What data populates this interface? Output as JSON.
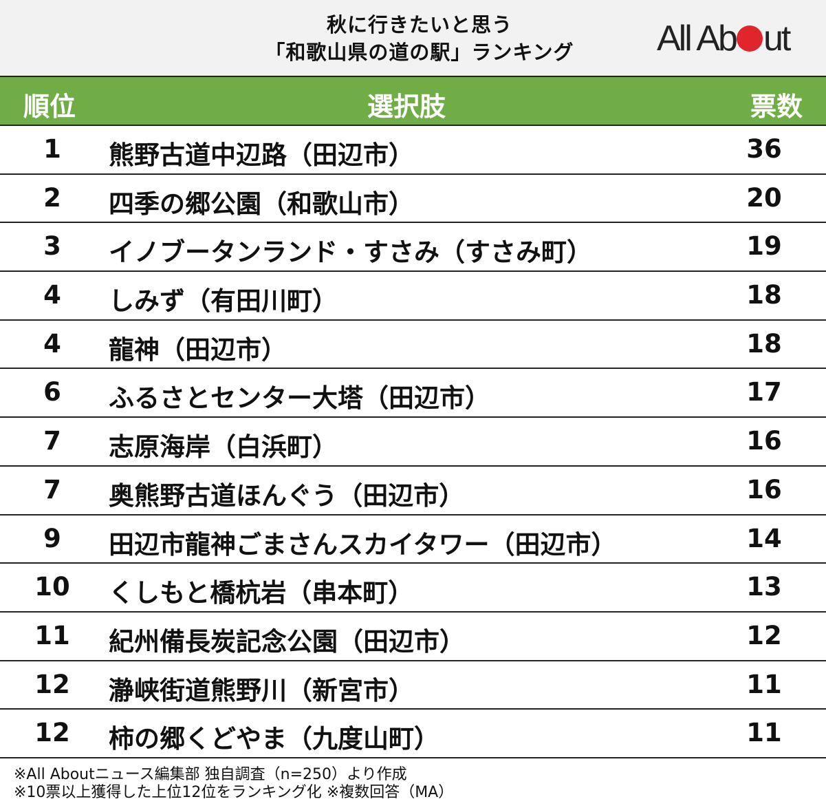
{
  "header": {
    "title_line1": "秋に行きたいと思う",
    "title_line2": "「和歌山県の道の駅」ランキング",
    "logo_text": "All About",
    "logo_accent_color": "#e0262c"
  },
  "table": {
    "columns": {
      "rank": "順位",
      "option": "選択肢",
      "votes": "票数"
    },
    "header_color": "#70ad47",
    "rows": [
      {
        "rank": "1",
        "name": "熊野古道中辺路（田辺市）",
        "votes": "36"
      },
      {
        "rank": "2",
        "name": "四季の郷公園（和歌山市）",
        "votes": "20"
      },
      {
        "rank": "3",
        "name": "イノブータンランド・すさみ（すさみ町）",
        "votes": "19"
      },
      {
        "rank": "4",
        "name": "しみず（有田川町）",
        "votes": "18"
      },
      {
        "rank": "4",
        "name": "龍神（田辺市）",
        "votes": "18"
      },
      {
        "rank": "6",
        "name": "ふるさとセンター大塔（田辺市）",
        "votes": "17"
      },
      {
        "rank": "7",
        "name": "志原海岸（白浜町）",
        "votes": "16"
      },
      {
        "rank": "7",
        "name": "奥熊野古道ほんぐう（田辺市）",
        "votes": "16"
      },
      {
        "rank": "9",
        "name": "田辺市龍神ごまさんスカイタワー（田辺市）",
        "votes": "14"
      },
      {
        "rank": "10",
        "name": "くしもと橋杭岩（串本町）",
        "votes": "13"
      },
      {
        "rank": "11",
        "name": "紀州備長炭記念公園（田辺市）",
        "votes": "12"
      },
      {
        "rank": "12",
        "name": "瀞峡街道熊野川（新宮市）",
        "votes": "11"
      },
      {
        "rank": "12",
        "name": "柿の郷くどやま（九度山町）",
        "votes": "11"
      }
    ]
  },
  "footer": {
    "note1": "※All Aboutニュース編集部 独自調査（n=250）より作成",
    "note2": "※10票以上獲得した上位12位をランキング化 ※複数回答（MA）"
  }
}
